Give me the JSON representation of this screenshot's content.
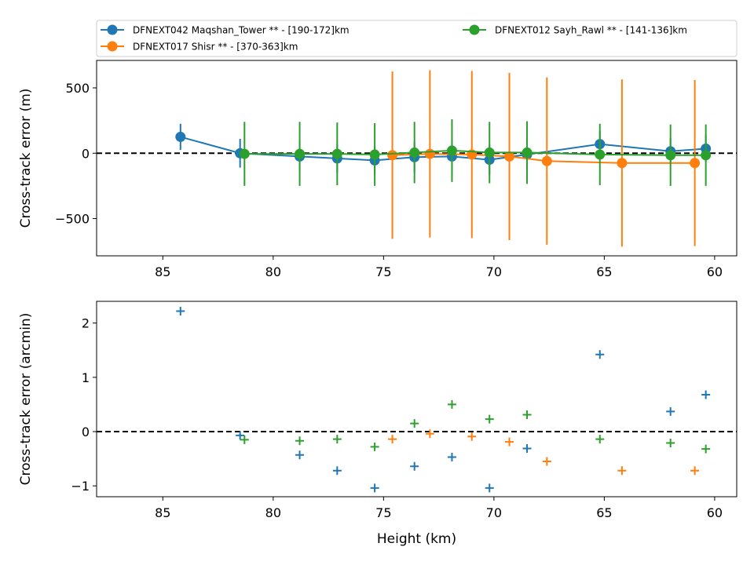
{
  "chart_data": [
    {
      "type": "line",
      "subtype": "errorbar",
      "xlabel": "",
      "ylabel": "Cross-track error (m)",
      "xlim": [
        88,
        59
      ],
      "ylim": [
        -785,
        710
      ],
      "x_ticks": [
        85,
        80,
        75,
        70,
        65,
        60
      ],
      "y_ticks": [
        500,
        0,
        -500
      ],
      "reference_line": {
        "y": 0,
        "style": "dashed",
        "color": "#000000"
      },
      "legend": {
        "placement": "above",
        "entries": [
          "DFNEXT042 Maqshan_Tower **  - [190-172]km",
          "DFNEXT012 Sayh_Rawl **  - [141-136]km",
          "DFNEXT017 Shisr **  - [370-363]km"
        ]
      },
      "series": [
        {
          "name": "DFNEXT042 Maqshan_Tower **  - [190-172]km",
          "color": "#1f77b4",
          "points": [
            {
              "x": 84.2,
              "y": 125,
              "err": 100
            },
            {
              "x": 81.5,
              "y": 0,
              "err": 110
            },
            {
              "x": 78.8,
              "y": -25,
              "err": 110
            },
            {
              "x": 77.1,
              "y": -40,
              "err": 110
            },
            {
              "x": 75.4,
              "y": -55,
              "err": 110
            },
            {
              "x": 73.6,
              "y": -30,
              "err": 115
            },
            {
              "x": 71.9,
              "y": -25,
              "err": 110
            },
            {
              "x": 70.2,
              "y": -50,
              "err": 115
            },
            {
              "x": 68.5,
              "y": -10,
              "err": 115
            },
            {
              "x": 65.2,
              "y": 70,
              "err": 100
            },
            {
              "x": 62.0,
              "y": 15,
              "err": 100
            },
            {
              "x": 60.4,
              "y": 35,
              "err": 100
            }
          ]
        },
        {
          "name": "DFNEXT017 Shisr **  - [370-363]km",
          "color": "#ff7f0e",
          "points": [
            {
              "x": 74.6,
              "y": -15,
              "err": 640
            },
            {
              "x": 72.9,
              "y": -5,
              "err": 640
            },
            {
              "x": 71.0,
              "y": -10,
              "err": 640
            },
            {
              "x": 69.3,
              "y": -25,
              "err": 640
            },
            {
              "x": 67.6,
              "y": -60,
              "err": 640
            },
            {
              "x": 64.2,
              "y": -75,
              "err": 640
            },
            {
              "x": 60.9,
              "y": -75,
              "err": 635
            }
          ]
        },
        {
          "name": "DFNEXT012 Sayh_Rawl **  - [141-136]km",
          "color": "#2ca02c",
          "points": [
            {
              "x": 81.3,
              "y": -5,
              "err": 245
            },
            {
              "x": 78.8,
              "y": -5,
              "err": 245
            },
            {
              "x": 77.1,
              "y": -5,
              "err": 240
            },
            {
              "x": 75.4,
              "y": -10,
              "err": 240
            },
            {
              "x": 73.6,
              "y": 5,
              "err": 235
            },
            {
              "x": 71.9,
              "y": 20,
              "err": 240
            },
            {
              "x": 70.2,
              "y": 5,
              "err": 235
            },
            {
              "x": 68.5,
              "y": 5,
              "err": 240
            },
            {
              "x": 65.2,
              "y": -10,
              "err": 235
            },
            {
              "x": 62.0,
              "y": -15,
              "err": 235
            },
            {
              "x": 60.4,
              "y": -15,
              "err": 235
            }
          ]
        }
      ]
    },
    {
      "type": "scatter",
      "marker": "plus",
      "xlabel": "Height (km)",
      "ylabel": "Cross-track error (arcmin)",
      "xlim": [
        88,
        59
      ],
      "ylim": [
        -1.2,
        2.4
      ],
      "x_ticks": [
        85,
        80,
        75,
        70,
        65,
        60
      ],
      "y_ticks": [
        2,
        1,
        0,
        -1
      ],
      "reference_line": {
        "y": 0,
        "style": "dashed",
        "color": "#000000"
      },
      "series": [
        {
          "name": "DFNEXT042 Maqshan_Tower **  - [190-172]km",
          "color": "#1f77b4",
          "points": [
            {
              "x": 84.2,
              "y": 2.22
            },
            {
              "x": 81.5,
              "y": -0.07
            },
            {
              "x": 78.8,
              "y": -0.43
            },
            {
              "x": 77.1,
              "y": -0.72
            },
            {
              "x": 75.4,
              "y": -1.04
            },
            {
              "x": 73.6,
              "y": -0.64
            },
            {
              "x": 71.9,
              "y": -0.47
            },
            {
              "x": 70.2,
              "y": -1.04
            },
            {
              "x": 68.5,
              "y": -0.31
            },
            {
              "x": 65.2,
              "y": 1.42
            },
            {
              "x": 62.0,
              "y": 0.37
            },
            {
              "x": 60.4,
              "y": 0.68
            }
          ]
        },
        {
          "name": "DFNEXT017 Shisr **  - [370-363]km",
          "color": "#ff7f0e",
          "points": [
            {
              "x": 74.6,
              "y": -0.14
            },
            {
              "x": 72.9,
              "y": -0.04
            },
            {
              "x": 71.0,
              "y": -0.09
            },
            {
              "x": 69.3,
              "y": -0.19
            },
            {
              "x": 67.6,
              "y": -0.55
            },
            {
              "x": 64.2,
              "y": -0.72
            },
            {
              "x": 60.9,
              "y": -0.72
            }
          ]
        },
        {
          "name": "DFNEXT012 Sayh_Rawl **  - [141-136]km",
          "color": "#2ca02c",
          "points": [
            {
              "x": 81.3,
              "y": -0.15
            },
            {
              "x": 78.8,
              "y": -0.17
            },
            {
              "x": 77.1,
              "y": -0.14
            },
            {
              "x": 75.4,
              "y": -0.28
            },
            {
              "x": 73.6,
              "y": 0.15
            },
            {
              "x": 71.9,
              "y": 0.5
            },
            {
              "x": 70.2,
              "y": 0.23
            },
            {
              "x": 68.5,
              "y": 0.31
            },
            {
              "x": 65.2,
              "y": -0.14
            },
            {
              "x": 62.0,
              "y": -0.21
            },
            {
              "x": 60.4,
              "y": -0.32
            }
          ]
        }
      ]
    }
  ]
}
